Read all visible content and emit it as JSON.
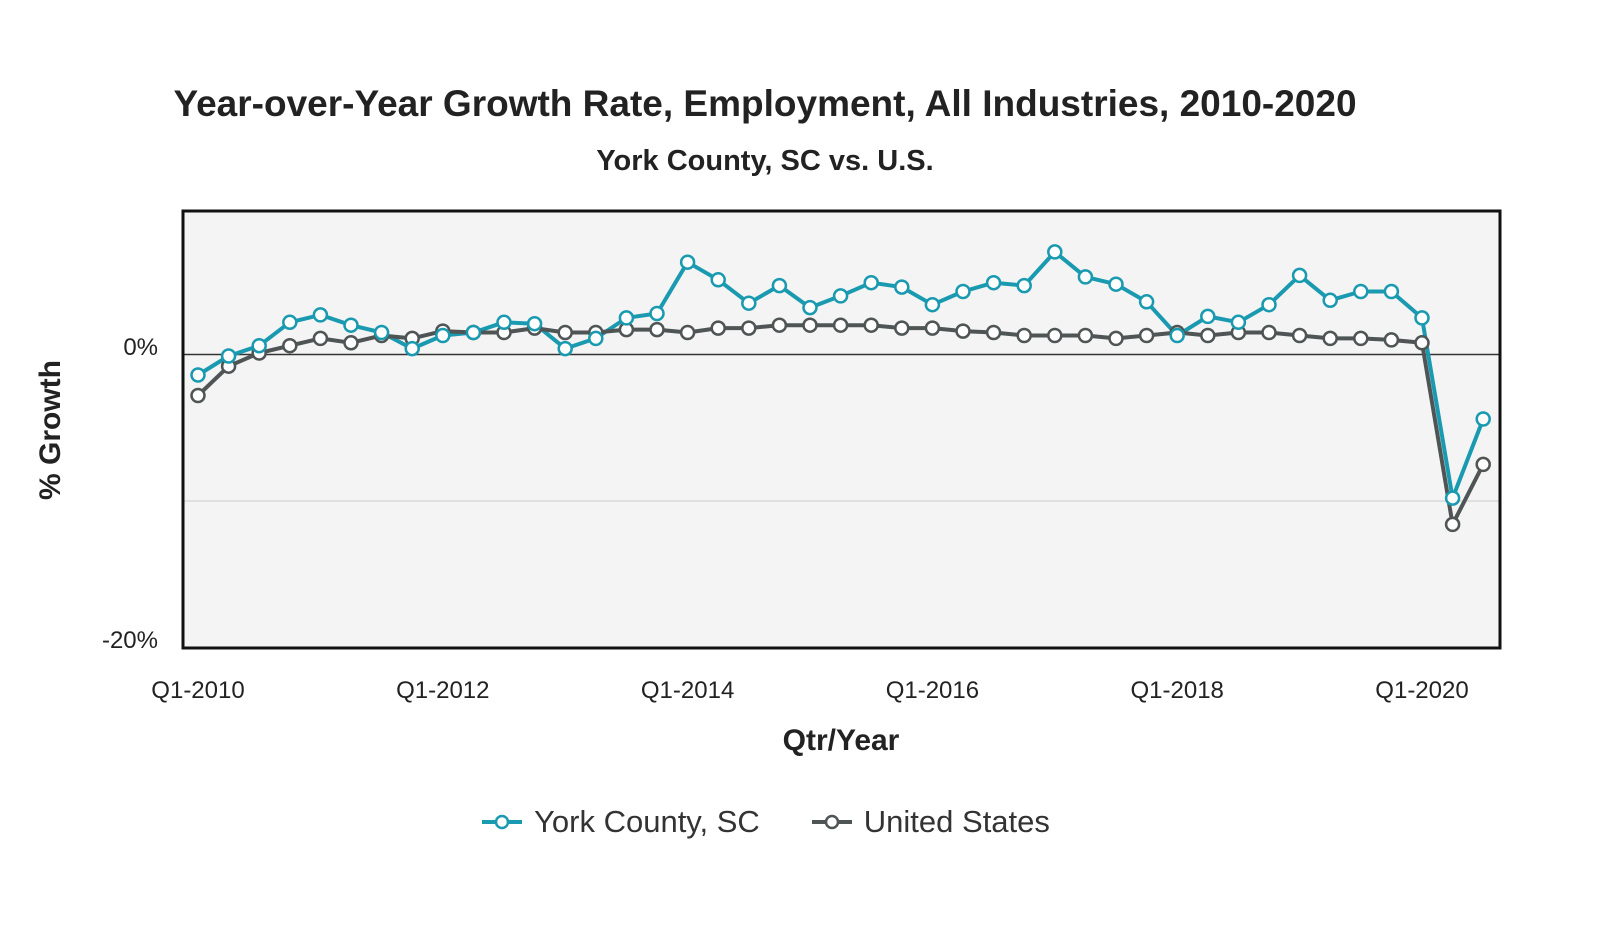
{
  "chart_data": {
    "type": "line",
    "title": "Year-over-Year Growth Rate, Employment, All Industries, 2010-2020",
    "subtitle": "York County, SC vs. U.S.",
    "xlabel": "Qtr/Year",
    "ylabel": "% Growth",
    "ylim": [
      -20,
      10
    ],
    "y_ticks": [
      "0%",
      "-20%"
    ],
    "x_tick_labels": [
      "Q1-2010",
      "Q1-2012",
      "Q1-2014",
      "Q1-2016",
      "Q1-2018",
      "Q1-2020"
    ],
    "x": [
      "Q1-2010",
      "Q2-2010",
      "Q3-2010",
      "Q4-2010",
      "Q1-2011",
      "Q2-2011",
      "Q3-2011",
      "Q4-2011",
      "Q1-2012",
      "Q2-2012",
      "Q3-2012",
      "Q4-2012",
      "Q1-2013",
      "Q2-2013",
      "Q3-2013",
      "Q4-2013",
      "Q1-2014",
      "Q2-2014",
      "Q3-2014",
      "Q4-2014",
      "Q1-2015",
      "Q2-2015",
      "Q3-2015",
      "Q4-2015",
      "Q1-2016",
      "Q2-2016",
      "Q3-2016",
      "Q4-2016",
      "Q1-2017",
      "Q2-2017",
      "Q3-2017",
      "Q4-2017",
      "Q1-2018",
      "Q2-2018",
      "Q3-2018",
      "Q4-2018",
      "Q1-2019",
      "Q2-2019",
      "Q3-2019",
      "Q4-2019",
      "Q1-2020",
      "Q2-2020",
      "Q3-2020"
    ],
    "series": [
      {
        "name": "York County, SC",
        "color": "#1a9ab0",
        "values": [
          -1.4,
          -0.1,
          0.6,
          2.2,
          2.7,
          2.0,
          1.5,
          0.4,
          1.3,
          1.5,
          2.2,
          2.1,
          0.4,
          1.1,
          2.5,
          2.8,
          6.3,
          5.1,
          3.5,
          4.7,
          3.2,
          4.0,
          4.9,
          4.6,
          3.4,
          4.3,
          4.9,
          4.7,
          7.0,
          5.3,
          4.8,
          3.6,
          1.3,
          2.6,
          2.2,
          3.4,
          5.4,
          3.7,
          4.3,
          4.3,
          2.5,
          -9.8,
          -4.4
        ]
      },
      {
        "name": "United States",
        "color": "#4f5454",
        "values": [
          -2.8,
          -0.8,
          0.1,
          0.6,
          1.1,
          0.8,
          1.3,
          1.1,
          1.6,
          1.5,
          1.5,
          1.8,
          1.5,
          1.5,
          1.7,
          1.7,
          1.5,
          1.8,
          1.8,
          2.0,
          2.0,
          2.0,
          2.0,
          1.8,
          1.8,
          1.6,
          1.5,
          1.3,
          1.3,
          1.3,
          1.1,
          1.3,
          1.5,
          1.3,
          1.5,
          1.5,
          1.3,
          1.1,
          1.1,
          1.0,
          0.8,
          -11.6,
          -7.5
        ]
      }
    ],
    "grid": true,
    "legend": "bottom-center"
  }
}
